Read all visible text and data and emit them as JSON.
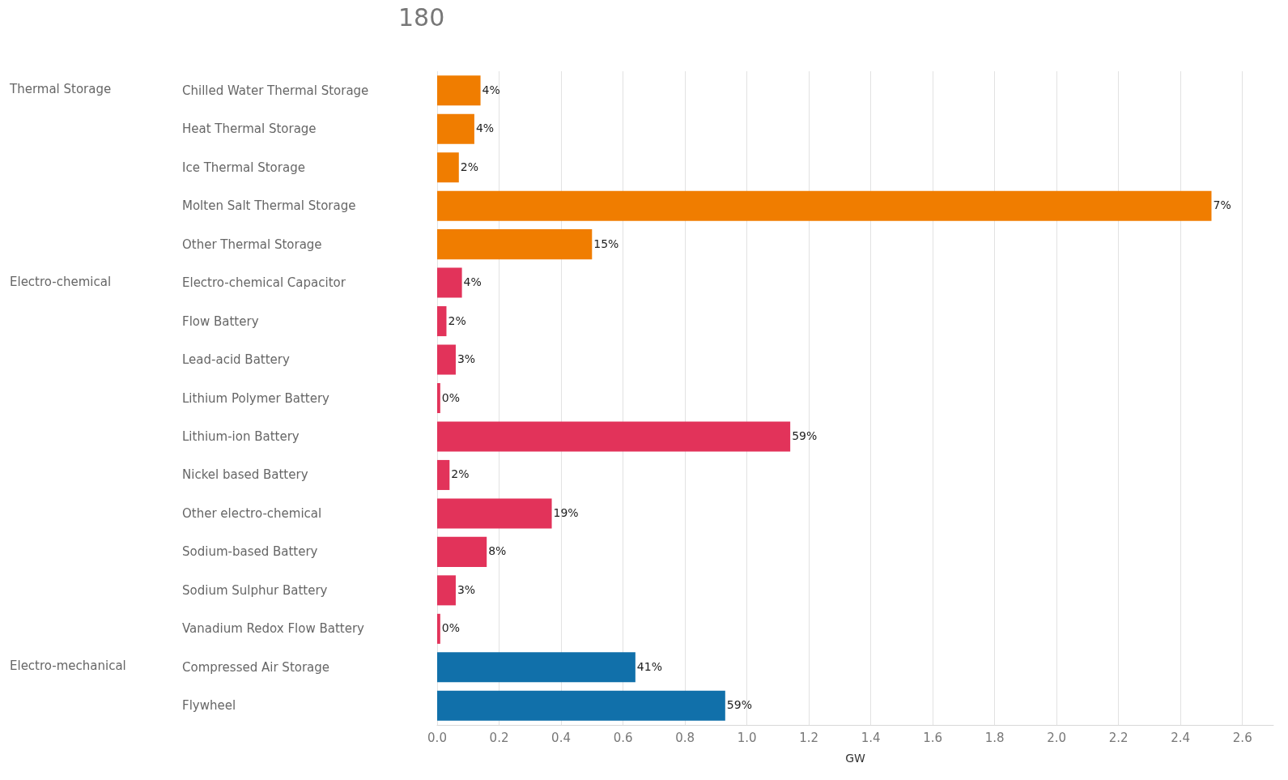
{
  "chart_data": {
    "type": "bar",
    "orientation": "horizontal",
    "xlabel": "GW",
    "categories": [
      "Chilled Water Thermal Storage",
      "Heat Thermal Storage",
      "Ice Thermal Storage",
      "Molten Salt Thermal Storage",
      "Other Thermal Storage",
      "Electro-chemical Capacitor",
      "Flow Battery",
      "Lead-acid Battery",
      "Lithium Polymer Battery",
      "Lithium-ion Battery",
      "Nickel based Battery",
      "Other electro-chemical",
      "Sodium-based Battery",
      "Sodium Sulphur Battery",
      "Vanadium Redox Flow Battery",
      "Compressed Air Storage",
      "Flywheel"
    ],
    "values": [
      0.14,
      0.12,
      0.07,
      2.5,
      0.5,
      0.08,
      0.03,
      0.06,
      0.01,
      1.14,
      0.04,
      0.37,
      0.16,
      0.06,
      0.01,
      0.64,
      0.93
    ],
    "colors": [
      "#f07d00",
      "#f07d00",
      "#f07d00",
      "#f07d00",
      "#f07d00",
      "#e2335a",
      "#e2335a",
      "#e2335a",
      "#e2335a",
      "#e2335a",
      "#e2335a",
      "#e2335a",
      "#e2335a",
      "#e2335a",
      "#e2335a",
      "#1170aa",
      "#1170aa"
    ],
    "xlim": [
      0,
      2.7
    ],
    "xticks": [
      {
        "value": 0,
        "label": "0.0"
      },
      0.2,
      0.4,
      0.6,
      0.8,
      {
        "value": 1,
        "label": "1.0"
      },
      1.2,
      1.4,
      1.6,
      1.8,
      {
        "value": 2,
        "label": "2.0"
      },
      2.2,
      2.4,
      2.6
    ],
    "grid": "x",
    "annotations": [
      "Thermal Storage",
      "Electro-chemical",
      "Electro-mechanical",
      "180",
      {
        "text": "4%",
        "x": 0.14,
        "y": "Chilled Water Thermal Storage"
      },
      {
        "text": "4%",
        "x": 0.12,
        "y": "Heat Thermal Storage"
      },
      {
        "text": "2%",
        "x": 0.07,
        "y": "Ice Thermal Storage"
      },
      {
        "text": "7%",
        "x": 2.5,
        "y": "Molten Salt Thermal Storage"
      },
      {
        "text": "15%",
        "x": 0.5,
        "y": "Other Thermal Storage"
      },
      {
        "text": "4%",
        "x": 0.08,
        "y": "Electro-chemical Capacitor"
      },
      {
        "text": "2%",
        "x": 0.03,
        "y": "Flow Battery"
      },
      {
        "text": "3%",
        "x": 0.06,
        "y": "Lead-acid Battery"
      },
      {
        "text": "0%",
        "x": 0.01,
        "y": "Lithium Polymer Battery"
      },
      {
        "text": "59%",
        "x": 1.14,
        "y": "Lithium-ion Battery"
      },
      {
        "text": "2%",
        "x": 0.04,
        "y": "Nickel based Battery"
      },
      {
        "text": "19%",
        "x": 0.37,
        "y": "Other electro-chemical"
      },
      {
        "text": "8%",
        "x": 0.16,
        "y": "Sodium-based Battery"
      },
      {
        "text": "3%",
        "x": 0.06,
        "y": "Sodium Sulphur Battery"
      },
      {
        "text": "0%",
        "x": 0.01,
        "y": "Vanadium Redox Flow Battery"
      },
      {
        "text": "41%",
        "x": 0.64,
        "y": "Compressed Air Storage"
      },
      {
        "text": "59%",
        "x": 0.93,
        "y": "Flywheel"
      }
    ]
  }
}
